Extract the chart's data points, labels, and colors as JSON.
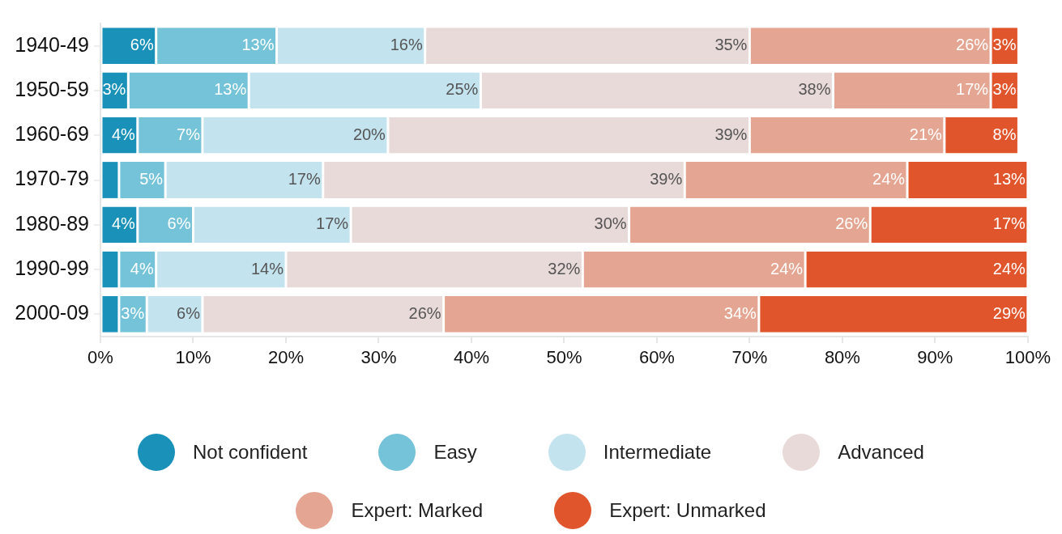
{
  "chart_data": {
    "type": "bar",
    "orientation": "horizontal",
    "stacked": true,
    "categories": [
      "1940-49",
      "1950-59",
      "1960-69",
      "1970-79",
      "1980-89",
      "1990-99",
      "2000-09"
    ],
    "series": [
      {
        "name": "Not confident",
        "color": "#1a91b8",
        "values": [
          6,
          3,
          4,
          2,
          4,
          2,
          2
        ],
        "value_labels": [
          "6%",
          "3%",
          "4%",
          null,
          "4%",
          null,
          null
        ]
      },
      {
        "name": "Easy",
        "color": "#75c3d8",
        "values": [
          13,
          13,
          7,
          5,
          6,
          4,
          3
        ],
        "value_labels": [
          "13%",
          "13%",
          "7%",
          "5%",
          "6%",
          "4%",
          "3%"
        ]
      },
      {
        "name": "Intermediate",
        "color": "#c3e3ee",
        "values": [
          16,
          25,
          20,
          17,
          17,
          14,
          6
        ],
        "value_labels": [
          "16%",
          "25%",
          "20%",
          "17%",
          "17%",
          "14%",
          "6%"
        ]
      },
      {
        "name": "Advanced",
        "color": "#e8dad8",
        "values": [
          35,
          38,
          39,
          39,
          30,
          32,
          26
        ],
        "value_labels": [
          "35%",
          "38%",
          "39%",
          "39%",
          "30%",
          "32%",
          "26%"
        ]
      },
      {
        "name": "Expert: Marked",
        "color": "#e4a692",
        "values": [
          26,
          17,
          21,
          24,
          26,
          24,
          34
        ],
        "value_labels": [
          "26%",
          "17%",
          "21%",
          "24%",
          "26%",
          "24%",
          "34%"
        ]
      },
      {
        "name": "Expert: Unmarked",
        "color": "#e0552c",
        "values": [
          3,
          3,
          8,
          13,
          17,
          24,
          29
        ],
        "value_labels": [
          "3%",
          "3%",
          "8%",
          "13%",
          "17%",
          "24%",
          "29%"
        ]
      }
    ],
    "xlim": [
      0,
      100
    ],
    "xticks": [
      {
        "value": 0,
        "label": "0%"
      },
      {
        "value": 10,
        "label": "10%"
      },
      {
        "value": 20,
        "label": "20%"
      },
      {
        "value": 30,
        "label": "30%"
      },
      {
        "value": 40,
        "label": "40%"
      },
      {
        "value": 50,
        "label": "50%"
      },
      {
        "value": 60,
        "label": "60%"
      },
      {
        "value": 70,
        "label": "70%"
      },
      {
        "value": 80,
        "label": "80%"
      },
      {
        "value": 90,
        "label": "90%"
      },
      {
        "value": 100,
        "label": "100%"
      }
    ],
    "legend": "bottom"
  }
}
